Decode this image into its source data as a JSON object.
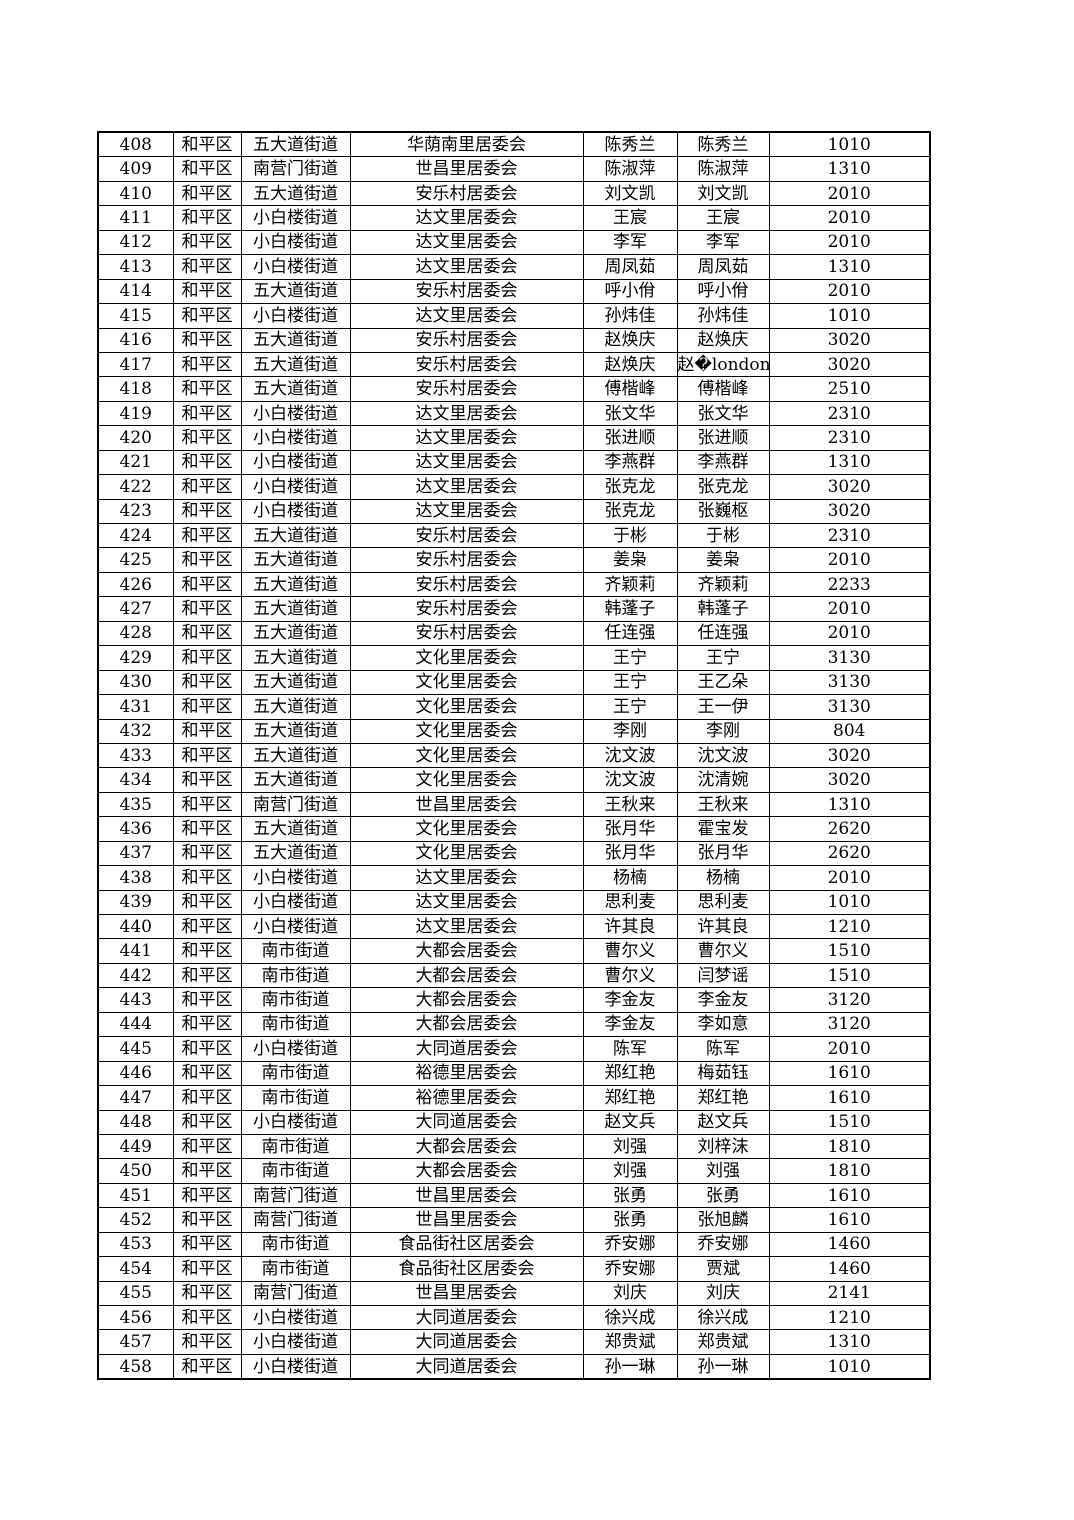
{
  "rows": [
    [
      "408",
      "和平区",
      "五大道街道",
      "华荫南里居委会",
      "陈秀兰",
      "陈秀兰",
      "1010"
    ],
    [
      "409",
      "和平区",
      "南营门街道",
      "世昌里居委会",
      "陈淑萍",
      "陈淑萍",
      "1310"
    ],
    [
      "410",
      "和平区",
      "五大道街道",
      "安乐村居委会",
      "刘文凯",
      "刘文凯",
      "2010"
    ],
    [
      "411",
      "和平区",
      "小白楼街道",
      "达文里居委会",
      "王宸",
      "王宸",
      "2010"
    ],
    [
      "412",
      "和平区",
      "小白楼街道",
      "达文里居委会",
      "李军",
      "李军",
      "2010"
    ],
    [
      "413",
      "和平区",
      "小白楼街道",
      "达文里居委会",
      "周凤茹",
      "周凤茹",
      "1310"
    ],
    [
      "414",
      "和平区",
      "五大道街道",
      "安乐村居委会",
      "呼小佾",
      "呼小佾",
      "2010"
    ],
    [
      "415",
      "和平区",
      "小白楼街道",
      "达文里居委会",
      "孙炜佳",
      "孙炜佳",
      "1010"
    ],
    [
      "416",
      "和平区",
      "五大道街道",
      "安乐村居委会",
      "赵焕庆",
      "赵焕庆",
      "3020"
    ],
    [
      "417",
      "和平区",
      "五大道街道",
      "安乐村居委会",
      "赵焕庆",
      "赵�london",
      "3020"
    ],
    [
      "418",
      "和平区",
      "五大道街道",
      "安乐村居委会",
      "傅楷峰",
      "傅楷峰",
      "2510"
    ],
    [
      "419",
      "和平区",
      "小白楼街道",
      "达文里居委会",
      "张文华",
      "张文华",
      "2310"
    ],
    [
      "420",
      "和平区",
      "小白楼街道",
      "达文里居委会",
      "张进顺",
      "张进顺",
      "2310"
    ],
    [
      "421",
      "和平区",
      "小白楼街道",
      "达文里居委会",
      "李燕群",
      "李燕群",
      "1310"
    ],
    [
      "422",
      "和平区",
      "小白楼街道",
      "达文里居委会",
      "张克龙",
      "张克龙",
      "3020"
    ],
    [
      "423",
      "和平区",
      "小白楼街道",
      "达文里居委会",
      "张克龙",
      "张巍枢",
      "3020"
    ],
    [
      "424",
      "和平区",
      "五大道街道",
      "安乐村居委会",
      "于彬",
      "于彬",
      "2310"
    ],
    [
      "425",
      "和平区",
      "五大道街道",
      "安乐村居委会",
      "姜枭",
      "姜枭",
      "2010"
    ],
    [
      "426",
      "和平区",
      "五大道街道",
      "安乐村居委会",
      "齐颖莉",
      "齐颖莉",
      "2233"
    ],
    [
      "427",
      "和平区",
      "五大道街道",
      "安乐村居委会",
      "韩蓬子",
      "韩蓬子",
      "2010"
    ],
    [
      "428",
      "和平区",
      "五大道街道",
      "安乐村居委会",
      "任连强",
      "任连强",
      "2010"
    ],
    [
      "429",
      "和平区",
      "五大道街道",
      "文化里居委会",
      "王宁",
      "王宁",
      "3130"
    ],
    [
      "430",
      "和平区",
      "五大道街道",
      "文化里居委会",
      "王宁",
      "王乙朵",
      "3130"
    ],
    [
      "431",
      "和平区",
      "五大道街道",
      "文化里居委会",
      "王宁",
      "王一伊",
      "3130"
    ],
    [
      "432",
      "和平区",
      "五大道街道",
      "文化里居委会",
      "李刚",
      "李刚",
      "804"
    ],
    [
      "433",
      "和平区",
      "五大道街道",
      "文化里居委会",
      "沈文波",
      "沈文波",
      "3020"
    ],
    [
      "434",
      "和平区",
      "五大道街道",
      "文化里居委会",
      "沈文波",
      "沈清婉",
      "3020"
    ],
    [
      "435",
      "和平区",
      "南营门街道",
      "世昌里居委会",
      "王秋来",
      "王秋来",
      "1310"
    ],
    [
      "436",
      "和平区",
      "五大道街道",
      "文化里居委会",
      "张月华",
      "霍宝发",
      "2620"
    ],
    [
      "437",
      "和平区",
      "五大道街道",
      "文化里居委会",
      "张月华",
      "张月华",
      "2620"
    ],
    [
      "438",
      "和平区",
      "小白楼街道",
      "达文里居委会",
      "杨楠",
      "杨楠",
      "2010"
    ],
    [
      "439",
      "和平区",
      "小白楼街道",
      "达文里居委会",
      "思利麦",
      "思利麦",
      "1010"
    ],
    [
      "440",
      "和平区",
      "小白楼街道",
      "达文里居委会",
      "许其良",
      "许其良",
      "1210"
    ],
    [
      "441",
      "和平区",
      "南市街道",
      "大都会居委会",
      "曹尔义",
      "曹尔义",
      "1510"
    ],
    [
      "442",
      "和平区",
      "南市街道",
      "大都会居委会",
      "曹尔义",
      "闫梦谣",
      "1510"
    ],
    [
      "443",
      "和平区",
      "南市街道",
      "大都会居委会",
      "李金友",
      "李金友",
      "3120"
    ],
    [
      "444",
      "和平区",
      "南市街道",
      "大都会居委会",
      "李金友",
      "李如意",
      "3120"
    ],
    [
      "445",
      "和平区",
      "小白楼街道",
      "大同道居委会",
      "陈军",
      "陈军",
      "2010"
    ],
    [
      "446",
      "和平区",
      "南市街道",
      "裕德里居委会",
      "郑红艳",
      "梅茹钰",
      "1610"
    ],
    [
      "447",
      "和平区",
      "南市街道",
      "裕德里居委会",
      "郑红艳",
      "郑红艳",
      "1610"
    ],
    [
      "448",
      "和平区",
      "小白楼街道",
      "大同道居委会",
      "赵文兵",
      "赵文兵",
      "1510"
    ],
    [
      "449",
      "和平区",
      "南市街道",
      "大都会居委会",
      "刘强",
      "刘梓沫",
      "1810"
    ],
    [
      "450",
      "和平区",
      "南市街道",
      "大都会居委会",
      "刘强",
      "刘强",
      "1810"
    ],
    [
      "451",
      "和平区",
      "南营门街道",
      "世昌里居委会",
      "张勇",
      "张勇",
      "1610"
    ],
    [
      "452",
      "和平区",
      "南营门街道",
      "世昌里居委会",
      "张勇",
      "张旭麟",
      "1610"
    ],
    [
      "453",
      "和平区",
      "南市街道",
      "食品街社区居委会",
      "乔安娜",
      "乔安娜",
      "1460"
    ],
    [
      "454",
      "和平区",
      "南市街道",
      "食品街社区居委会",
      "乔安娜",
      "贾斌",
      "1460"
    ],
    [
      "455",
      "和平区",
      "南营门街道",
      "世昌里居委会",
      "刘庆",
      "刘庆",
      "2141"
    ],
    [
      "456",
      "和平区",
      "小白楼街道",
      "大同道居委会",
      "徐兴成",
      "徐兴成",
      "1210"
    ],
    [
      "457",
      "和平区",
      "小白楼街道",
      "大同道居委会",
      "郑贵斌",
      "郑贵斌",
      "1310"
    ],
    [
      "458",
      "和平区",
      "小白楼街道",
      "大同道居委会",
      "孙一琳",
      "孙一琳",
      "1010"
    ]
  ]
}
